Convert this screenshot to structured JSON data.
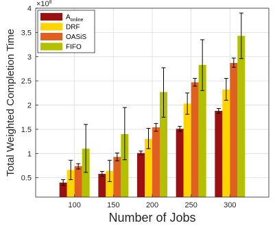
{
  "chart_data": {
    "type": "bar",
    "xlabel": "Number of Jobs",
    "ylabel": "Total Weighted Completion Time",
    "exponent_label": "×10",
    "exponent_power": "8",
    "categories": [
      "100",
      "150",
      "200",
      "250",
      "300"
    ],
    "ylim": [
      0.1,
      4
    ],
    "yticks": [
      0.5,
      1,
      1.5,
      2,
      2.5,
      3,
      3.5,
      4
    ],
    "ytick_labels": [
      "0.5",
      "1",
      "1.5",
      "2",
      "2.5",
      "3",
      "3.5",
      "4"
    ],
    "grid": true,
    "legend_position": "top-left",
    "series": [
      {
        "name": "A",
        "name_sub": "online",
        "color": "#9b1010",
        "values": [
          0.4,
          0.58,
          1.01,
          1.51,
          1.88
        ],
        "err_low": [
          0.06,
          0.05,
          0.04,
          0.05,
          0.05
        ],
        "err_high": [
          0.06,
          0.05,
          0.04,
          0.05,
          0.05
        ]
      },
      {
        "name": "DRF",
        "name_sub": "",
        "color": "#ffd400",
        "values": [
          0.66,
          0.64,
          1.3,
          2.03,
          2.32
        ],
        "err_low": [
          0.2,
          0.22,
          0.2,
          0.22,
          0.22
        ],
        "err_high": [
          0.2,
          0.22,
          0.22,
          0.22,
          0.23
        ]
      },
      {
        "name": "OASiS",
        "name_sub": "",
        "color": "#e06020",
        "values": [
          0.74,
          0.93,
          1.54,
          2.47,
          2.87
        ],
        "err_low": [
          0.06,
          0.08,
          0.08,
          0.08,
          0.09
        ],
        "err_high": [
          0.05,
          0.08,
          0.08,
          0.08,
          0.1
        ]
      },
      {
        "name": "FIFO",
        "name_sub": "",
        "color": "#b3c000",
        "values": [
          1.1,
          1.4,
          2.27,
          2.83,
          3.43
        ],
        "err_low": [
          0.49,
          0.53,
          0.52,
          0.53,
          0.47
        ],
        "err_high": [
          0.5,
          0.55,
          0.5,
          0.52,
          0.47
        ]
      }
    ]
  }
}
